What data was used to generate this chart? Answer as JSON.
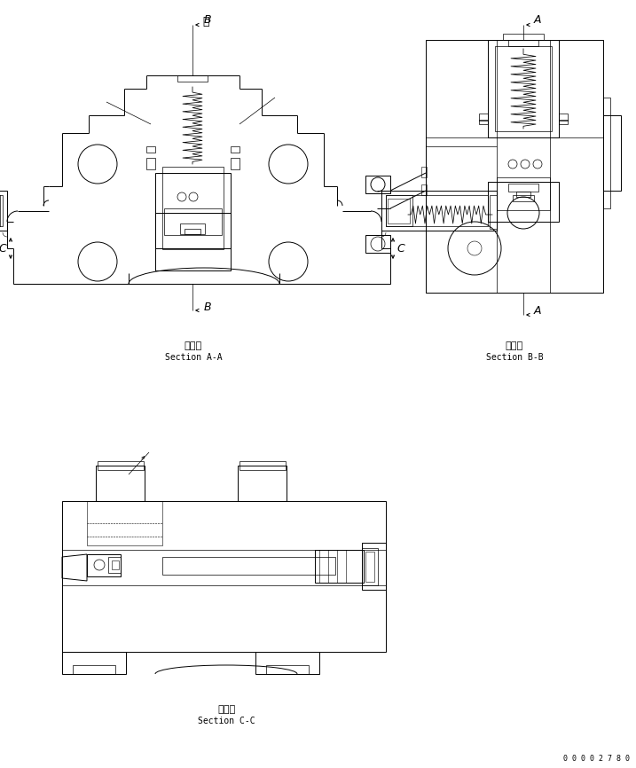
{
  "bg_color": "#ffffff",
  "line_color": "#000000",
  "text_color": "#000000",
  "section_aa_label_jp": "断　面",
  "section_aa_label_en": "Section A-A",
  "section_bb_label_jp": "断　面",
  "section_bb_label_en": "Section B-B",
  "section_cc_label_jp": "断　面",
  "section_cc_label_en": "Section C-C",
  "part_number": "0 0 0 0 2 7 8 0",
  "font_size_label_jp": 8,
  "font_size_label_en": 7,
  "font_size_letter": 9,
  "font_size_part": 6
}
